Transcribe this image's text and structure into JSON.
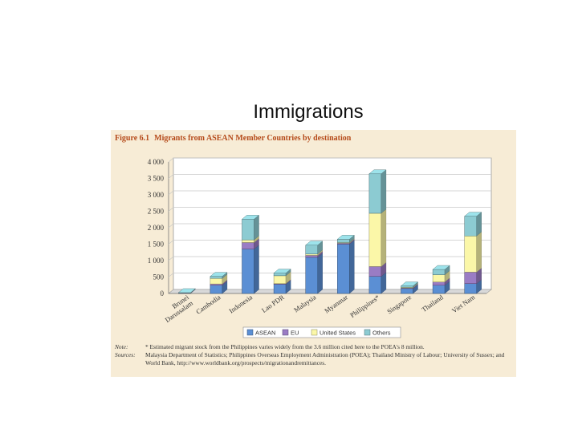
{
  "slide": {
    "title": "Immigrations"
  },
  "figure": {
    "number": "Figure 6.1",
    "caption": "Migrants from ASEAN Member Countries by destination",
    "note_label": "Note:",
    "note_text": "* Estimated migrant stock from the Philippines varies widely from the 3.6 million cited here to the POEA's 8 million.",
    "sources_label": "Sources:",
    "sources_text": "Malaysia Department of Statistics; Philippines Overseas Employment Administration (POEA); Thailand Ministry of Labour; University of Sussex; and World Bank, http://www.worldbank.org/prospects/migrationandremittances."
  },
  "chart_data": {
    "type": "bar",
    "stacked": true,
    "categories": [
      "Brunei Darussalam",
      "Cambodia",
      "Indonesia",
      "Lao PDR",
      "Malaysia",
      "Myanmar",
      "Philippines*",
      "Singapore",
      "Thailand",
      "Viet Nam"
    ],
    "series": [
      {
        "name": "ASEAN",
        "color": "#5b8fd4",
        "values": [
          10,
          250,
          1350,
          280,
          1100,
          1500,
          520,
          150,
          250,
          300
        ]
      },
      {
        "name": "EU",
        "color": "#9a7cc4",
        "values": [
          5,
          40,
          200,
          20,
          60,
          30,
          300,
          20,
          100,
          350
        ]
      },
      {
        "name": "United States",
        "color": "#fbf7a8",
        "values": [
          5,
          170,
          80,
          240,
          40,
          20,
          1620,
          20,
          220,
          1100
        ]
      },
      {
        "name": "Others",
        "color": "#8ccbd2",
        "values": [
          5,
          60,
          630,
          80,
          270,
          100,
          1200,
          40,
          160,
          600
        ]
      }
    ],
    "yticks": [
      "0",
      "500",
      "1 000",
      "1 500",
      "2 000",
      "2 500",
      "3 000",
      "3 500",
      "4 000"
    ],
    "ylim": [
      0,
      4000
    ],
    "grid": true,
    "legend": "bottom"
  }
}
